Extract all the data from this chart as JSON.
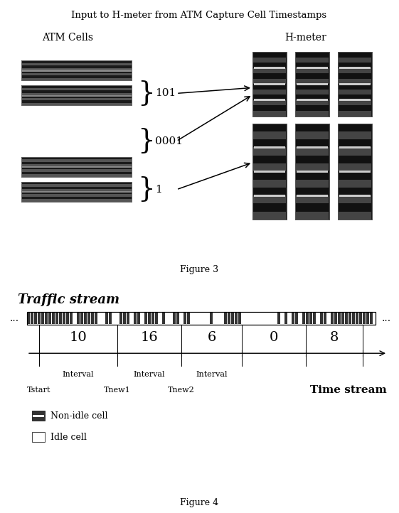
{
  "title1": "Input to H-meter from ATM Capture Cell Timestamps",
  "fig3_label": "Figure 3",
  "fig4_label": "Figure 4",
  "atm_cells_label": "ATM Cells",
  "hmeter_label": "H-meter",
  "traffic_stream_label": "Traffic stream",
  "time_stream_label": "Time stream",
  "brace_labels": [
    "101",
    "0001",
    "1"
  ],
  "interval_counts": [
    "10",
    "16",
    "6",
    "0",
    "8"
  ],
  "interval_labels": [
    "Interval",
    "Interval",
    "Interval"
  ],
  "time_labels": [
    "Tstart",
    "Tnew1",
    "Tnew2"
  ],
  "legend_items": [
    "Non-idle cell",
    "Idle cell"
  ],
  "cell_bg": "#333333",
  "cell_stripe": "#888888",
  "hmeter_bg": "#222222",
  "hmeter_stripe": "#666666"
}
